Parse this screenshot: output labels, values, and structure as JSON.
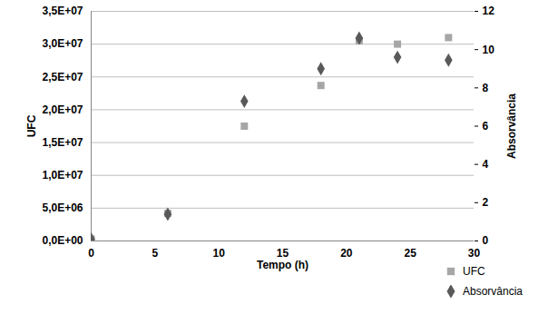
{
  "chart_data": {
    "type": "scatter",
    "x_label": "Tempo (h)",
    "y_label": "UFC",
    "y2_label": "Absorvância",
    "x": [
      0,
      6,
      12,
      18,
      21,
      24,
      28
    ],
    "series": [
      {
        "name": "UFC",
        "color": "#a6a6a6",
        "marker": "square",
        "axis": "y",
        "values": [
          300000,
          4200000,
          17500000,
          23700000,
          30500000,
          30000000,
          31000000
        ]
      },
      {
        "name": "Absorvância",
        "color": "#595959",
        "marker": "diamond",
        "axis": "y2",
        "values": [
          0.1,
          1.4,
          7.3,
          9.0,
          10.6,
          9.6,
          9.45
        ]
      }
    ],
    "xlim": [
      0,
      30
    ],
    "xticks": [
      0,
      5,
      10,
      15,
      20,
      25,
      30
    ],
    "ylim": [
      0,
      35000000
    ],
    "yticks": [
      {
        "value": 0,
        "label": "0,0E+00"
      },
      {
        "value": 5000000,
        "label": "5,0E+06"
      },
      {
        "value": 10000000,
        "label": "1,0E+07"
      },
      {
        "value": 15000000,
        "label": "1,5E+07"
      },
      {
        "value": 20000000,
        "label": "2,0E+07"
      },
      {
        "value": 25000000,
        "label": "2,5E+07"
      },
      {
        "value": 30000000,
        "label": "3,0E+07"
      },
      {
        "value": 35000000,
        "label": "3,5E+07"
      }
    ],
    "y2lim": [
      0,
      12
    ],
    "y2ticks": [
      0,
      2,
      4,
      6,
      8,
      10,
      12
    ],
    "grid": true,
    "legend": "bottom-right"
  }
}
